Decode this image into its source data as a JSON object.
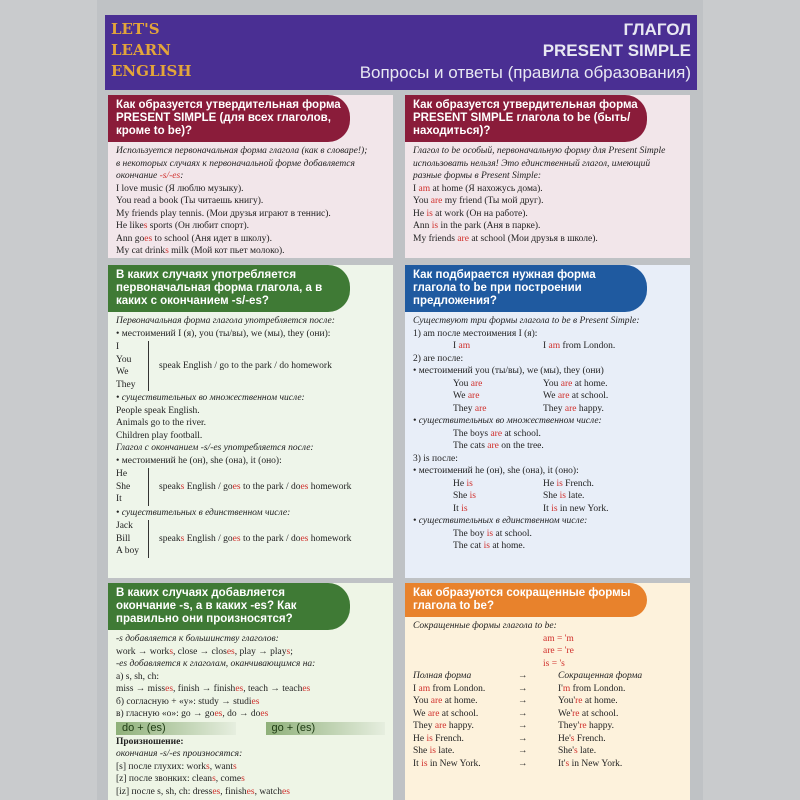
{
  "header": {
    "logo": [
      "LET'S",
      "LEARN",
      "ENGLISH"
    ],
    "title1": "ГЛАГОЛ",
    "title2": "PRESENT SIMPLE",
    "title3": "Вопросы и ответы (правила образования)"
  },
  "colors": {
    "header": "#4a2f93",
    "maroon": "#8a1c3a",
    "green": "#3f7a35",
    "blue": "#1f5aa0",
    "orange": "#e8822c",
    "highlight": "#d0302c"
  },
  "panels": [
    {
      "id": "affirmative-form",
      "head": "Как образуется утвердительная форма PRESENT SIMPLE (для всех глаголов, кроме to be)?",
      "lines": [
        {
          "s": [
            "Используется первоначальная форма глагола (как в словаре!);"
          ],
          "i": true
        },
        {
          "s": [
            "в некоторых случаях к первоначальной форме добавляется"
          ],
          "i": true
        },
        {
          "s": [
            "окончание ",
            "-s/-es",
            ":"
          ],
          "i": true
        },
        {
          "s": [
            "I love music (Я люблю музыку)."
          ]
        },
        {
          "s": [
            "You read a book (Ты читаешь книгу)."
          ]
        },
        {
          "s": [
            "My friends play tennis. (Мои друзья играют в теннис)."
          ]
        },
        {
          "s": [
            "He like",
            "s",
            " sports (Он любит спорт)."
          ]
        },
        {
          "s": [
            "Ann go",
            "es",
            " to school (Аня идет в школу)."
          ]
        },
        {
          "s": [
            "My cat drink",
            "s",
            " milk (Мой кот пьет молоко)."
          ]
        }
      ]
    },
    {
      "id": "to-be-form",
      "head": "Как образуется утвердительная форма PRESENT SIMPLE глагола to be (быть/находиться)?",
      "lines": [
        {
          "s": [
            "Глагол to be особый, первоначальную форму для Present Simple"
          ],
          "i": true
        },
        {
          "s": [
            "использовать нельзя! Это единственный глагол, имеющий"
          ],
          "i": true
        },
        {
          "s": [
            "разные формы в Present Simple:"
          ],
          "i": true
        },
        {
          "s": [
            "I ",
            "am",
            " at home (Я нахожусь дома)."
          ]
        },
        {
          "s": [
            "You ",
            "are",
            " my friend (Ты мой друг)."
          ]
        },
        {
          "s": [
            "He ",
            "is",
            " at work (Он на работе)."
          ]
        },
        {
          "s": [
            "Ann ",
            "is",
            " in the park (Аня в парке)."
          ]
        },
        {
          "s": [
            "My friends ",
            "are",
            " at school (Мои друзья в школе)."
          ]
        }
      ]
    },
    {
      "id": "base-or-s-form",
      "head": "В каких случаях употребляется первоначальная форма глагола, а в каких с окончанием -s/-es?",
      "lines": [
        {
          "s": [
            "Первоначальная форма глагола употребляется после:"
          ],
          "i": true
        },
        {
          "s": [
            "• местоимений I (я), you (ты/вы), we (мы), they (они):"
          ]
        },
        {
          "g": [
            "I",
            "You",
            "We",
            "They"
          ],
          "s": [
            "speak English / go to the park / do homework"
          ]
        },
        {
          "s": [
            "• существительных во множественном числе:"
          ],
          "i": true
        },
        {
          "s": [
            "People speak English."
          ]
        },
        {
          "s": [
            "Animals go to the river."
          ]
        },
        {
          "s": [
            "Children play football."
          ]
        },
        {
          "s": [
            "Глагол с окончанием -s/-es употребляется после:"
          ],
          "i": true
        },
        {
          "s": [
            "• местоимений he (он), she (она), it (оно):"
          ]
        },
        {
          "g": [
            "He",
            "She",
            "It"
          ],
          "s": [
            "speak",
            "s",
            " English / go",
            "es",
            " to the park / do",
            "es",
            " homework"
          ]
        },
        {
          "s": [
            "• существительных в единственном числе:"
          ],
          "i": true
        },
        {
          "g": [
            "Jack",
            "Bill",
            "A boy"
          ],
          "s": [
            "speak",
            "s",
            " English / go",
            "es",
            " to the park / do",
            "es",
            " homework"
          ]
        }
      ]
    },
    {
      "id": "to-be-choice",
      "head": "Как подбирается нужная форма глагола to be при построении предложения?",
      "lines": [
        {
          "s": [
            "Существуют три формы глагола to be в Present Simple:"
          ],
          "i": true
        },
        {
          "s": [
            "1) am после местоимения I (я):"
          ]
        },
        {
          "p": [
            [
              "I ",
              "am"
            ],
            [
              "I ",
              "am",
              " from London."
            ]
          ]
        },
        {
          "s": [
            "2) are после:"
          ]
        },
        {
          "s": [
            "• местоимений you (ты/вы), we (мы), they (они)"
          ]
        },
        {
          "p": [
            [
              "You ",
              "are"
            ],
            [
              "You ",
              "are",
              " at home."
            ]
          ]
        },
        {
          "p": [
            [
              "We ",
              "are"
            ],
            [
              "We ",
              "are",
              " at school."
            ]
          ]
        },
        {
          "p": [
            [
              "They ",
              "are"
            ],
            [
              "They ",
              "are",
              " happy."
            ]
          ]
        },
        {
          "s": [
            "• существительных во множественном числе:"
          ],
          "i": true
        },
        {
          "p": [
            [
              "The boys ",
              "are",
              " at school."
            ],
            []
          ]
        },
        {
          "p": [
            [
              "The cats ",
              "are",
              " on the tree."
            ],
            []
          ]
        },
        {
          "s": [
            "3) is после:"
          ]
        },
        {
          "s": [
            "• местоимений he (он), she (она), it (оно):"
          ]
        },
        {
          "p": [
            [
              "He ",
              "is"
            ],
            [
              "He ",
              "is",
              " French."
            ]
          ]
        },
        {
          "p": [
            [
              "She ",
              "is"
            ],
            [
              "She ",
              "is",
              " late."
            ]
          ]
        },
        {
          "p": [
            [
              "It ",
              "is"
            ],
            [
              "It ",
              "is",
              " in new York."
            ]
          ]
        },
        {
          "s": [
            "• существительных в единственном числе:"
          ],
          "i": true
        },
        {
          "p": [
            [
              "The boy ",
              "is",
              " at school."
            ],
            []
          ]
        },
        {
          "p": [
            [
              "The cat ",
              "is",
              " at home."
            ],
            []
          ]
        }
      ]
    },
    {
      "id": "s-es-endings",
      "head": "В каких случаях добавляется окончание -s, а в каких -es? Как правильно они произносятся?",
      "lines": [
        {
          "s": [
            "-s добавляется к большинству глаголов:"
          ],
          "i": true
        },
        {
          "s": [
            "work → work",
            "s",
            ", close → clos",
            "es",
            ", play → play",
            "s",
            ";"
          ]
        },
        {
          "s": [
            "-es добавляется к глаголам, оканчивающимся на:"
          ],
          "i": true
        },
        {
          "s": [
            "а) s, sh, ch:"
          ]
        },
        {
          "s": [
            "miss → miss",
            "es",
            ", finish → finish",
            "es",
            ", teach → teach",
            "es"
          ]
        },
        {
          "s": [
            "б) согласную + «y»: study → studi",
            "es"
          ]
        },
        {
          "s": [
            "в) гласную «o»: go → go",
            "es",
            ", do → do",
            "es"
          ]
        },
        {
          "bar": [
            "do + (es)",
            "go + (es)"
          ]
        },
        {
          "s": [
            "Произношение:"
          ],
          "b": true
        },
        {
          "s": [
            "окончания -s/-es произносятся:"
          ],
          "i": true
        },
        {
          "s": [
            "[s] после глухих: work",
            "s",
            ", want",
            "s"
          ]
        },
        {
          "s": [
            "[z] после звонких: clean",
            "s",
            ", come",
            "s"
          ]
        },
        {
          "s": [
            "[iz] после s, sh, ch: dress",
            "es",
            ", finish",
            "es",
            ", watch",
            "es"
          ]
        }
      ]
    },
    {
      "id": "short-forms",
      "head": "Как образуются сокращенные формы глагола to be?",
      "lines": [
        {
          "s": [
            "Сокращенные формы глагола to be:"
          ],
          "i": true
        },
        {
          "p": [
            [],
            [
              "",
              "am = 'm"
            ]
          ]
        },
        {
          "p": [
            [],
            [
              "",
              "are = 're"
            ]
          ]
        },
        {
          "p": [
            [],
            [
              "",
              "is = 's"
            ]
          ]
        },
        {
          "q": [
            [
              "Полная форма"
            ],
            [
              "→"
            ],
            [
              "Сокращенная форма"
            ]
          ],
          "i": true
        },
        {
          "q": [
            [
              "I ",
              "am",
              " from London."
            ],
            [
              "→"
            ],
            [
              "I'",
              "m",
              " from London."
            ]
          ]
        },
        {
          "q": [
            [
              "You ",
              "are",
              " at home."
            ],
            [
              "→"
            ],
            [
              "You'",
              "re",
              " at home."
            ]
          ]
        },
        {
          "q": [
            [
              "We ",
              "are",
              " at school."
            ],
            [
              "→"
            ],
            [
              "We'",
              "re",
              " at school."
            ]
          ]
        },
        {
          "q": [
            [
              "They ",
              "are",
              " happy."
            ],
            [
              "→"
            ],
            [
              "They'",
              "re",
              " happy."
            ]
          ]
        },
        {
          "q": [
            [
              "He ",
              "is",
              " French."
            ],
            [
              "→"
            ],
            [
              "He'",
              "s",
              " French."
            ]
          ]
        },
        {
          "q": [
            [
              "She ",
              "is",
              " late."
            ],
            [
              "→"
            ],
            [
              "She'",
              "s",
              " late."
            ]
          ]
        },
        {
          "q": [
            [
              "It ",
              "is",
              " in New York."
            ],
            [
              "→"
            ],
            [
              "It'",
              "s",
              " in New York."
            ]
          ]
        }
      ]
    }
  ]
}
